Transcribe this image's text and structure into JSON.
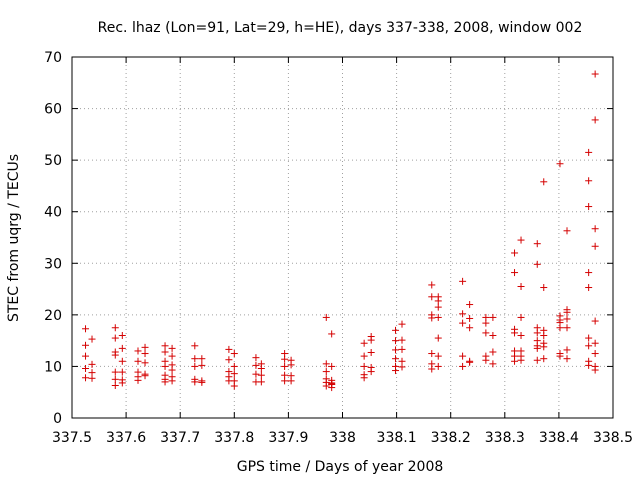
{
  "chart_data": {
    "type": "scatter",
    "title": "Rec. lhaz (Lon=91, Lat=29, h=HE), days 337-338, 2008, window 002",
    "xlabel": "GPS time / Days of year 2008",
    "ylabel": "STEC from uqrg / TECUs",
    "xlim": [
      337.5,
      338.5
    ],
    "ylim": [
      0,
      70
    ],
    "xticks": [
      "337.5",
      "337.6",
      "337.7",
      "337.8",
      "337.9",
      "338",
      "338.1",
      "338.2",
      "338.3",
      "338.4",
      "338.5"
    ],
    "yticks": [
      "0",
      "10",
      "20",
      "30",
      "40",
      "50",
      "60",
      "70"
    ],
    "grid": true,
    "marker": "+",
    "colors": {
      "points": "#d40000",
      "axes": "#000000",
      "grid": "#a0a0a0"
    },
    "points": [
      [
        337.525,
        17.3
      ],
      [
        337.525,
        14.1
      ],
      [
        337.525,
        12.0
      ],
      [
        337.525,
        9.6
      ],
      [
        337.525,
        7.8
      ],
      [
        337.537,
        15.3
      ],
      [
        337.537,
        10.4
      ],
      [
        337.537,
        8.8
      ],
      [
        337.537,
        7.7
      ],
      [
        337.58,
        17.5
      ],
      [
        337.58,
        15.5
      ],
      [
        337.58,
        12.8
      ],
      [
        337.58,
        12.2
      ],
      [
        337.58,
        8.9
      ],
      [
        337.58,
        7.5
      ],
      [
        337.58,
        6.3
      ],
      [
        337.593,
        16.0
      ],
      [
        337.593,
        13.5
      ],
      [
        337.593,
        11.0
      ],
      [
        337.593,
        8.9
      ],
      [
        337.593,
        7.4
      ],
      [
        337.593,
        6.8
      ],
      [
        337.622,
        13.0
      ],
      [
        337.622,
        11.0
      ],
      [
        337.622,
        8.9
      ],
      [
        337.622,
        8.0
      ],
      [
        337.622,
        7.3
      ],
      [
        337.635,
        13.7
      ],
      [
        337.635,
        12.5
      ],
      [
        337.635,
        10.7
      ],
      [
        337.635,
        8.5
      ],
      [
        337.635,
        8.2
      ],
      [
        337.672,
        14.0
      ],
      [
        337.672,
        12.8
      ],
      [
        337.672,
        11.0
      ],
      [
        337.672,
        10.0
      ],
      [
        337.672,
        8.3
      ],
      [
        337.672,
        7.5
      ],
      [
        337.672,
        7.0
      ],
      [
        337.685,
        13.5
      ],
      [
        337.685,
        12.0
      ],
      [
        337.685,
        10.3
      ],
      [
        337.685,
        9.3
      ],
      [
        337.685,
        8.0
      ],
      [
        337.685,
        7.2
      ],
      [
        337.727,
        14.0
      ],
      [
        337.727,
        11.5
      ],
      [
        337.727,
        10.0
      ],
      [
        337.727,
        7.5
      ],
      [
        337.727,
        7.0
      ],
      [
        337.74,
        11.5
      ],
      [
        337.74,
        10.2
      ],
      [
        337.74,
        7.2
      ],
      [
        337.74,
        6.9
      ],
      [
        337.79,
        13.3
      ],
      [
        337.79,
        11.3
      ],
      [
        337.79,
        9.0
      ],
      [
        337.79,
        8.0
      ],
      [
        337.79,
        7.2
      ],
      [
        337.8,
        12.5
      ],
      [
        337.8,
        10.0
      ],
      [
        337.8,
        8.6
      ],
      [
        337.8,
        7.2
      ],
      [
        337.8,
        6.2
      ],
      [
        337.84,
        11.7
      ],
      [
        337.84,
        10.2
      ],
      [
        337.84,
        8.5
      ],
      [
        337.84,
        7.0
      ],
      [
        337.85,
        10.5
      ],
      [
        337.85,
        9.6
      ],
      [
        337.85,
        8.3
      ],
      [
        337.85,
        7.0
      ],
      [
        337.893,
        12.5
      ],
      [
        337.893,
        11.4
      ],
      [
        337.893,
        10.0
      ],
      [
        337.893,
        8.3
      ],
      [
        337.893,
        7.2
      ],
      [
        337.905,
        11.2
      ],
      [
        337.905,
        10.3
      ],
      [
        337.905,
        8.2
      ],
      [
        337.905,
        7.2
      ],
      [
        337.97,
        19.5
      ],
      [
        337.97,
        10.5
      ],
      [
        337.97,
        9.0
      ],
      [
        337.97,
        7.6
      ],
      [
        337.97,
        6.9
      ],
      [
        337.97,
        6.2
      ],
      [
        337.98,
        16.3
      ],
      [
        337.98,
        10.0
      ],
      [
        337.98,
        7.3
      ],
      [
        337.98,
        6.8
      ],
      [
        337.98,
        6.6
      ],
      [
        337.98,
        6.5
      ],
      [
        337.98,
        5.9
      ],
      [
        338.04,
        14.5
      ],
      [
        338.04,
        12.0
      ],
      [
        338.04,
        10.0
      ],
      [
        338.04,
        8.4
      ],
      [
        338.04,
        7.8
      ],
      [
        338.053,
        15.8
      ],
      [
        338.053,
        15.1
      ],
      [
        338.053,
        12.7
      ],
      [
        338.053,
        9.8
      ],
      [
        338.053,
        9.0
      ],
      [
        338.098,
        17.0
      ],
      [
        338.098,
        15.0
      ],
      [
        338.098,
        13.2
      ],
      [
        338.098,
        11.5
      ],
      [
        338.098,
        10.0
      ],
      [
        338.098,
        9.2
      ],
      [
        338.11,
        18.2
      ],
      [
        338.11,
        15.1
      ],
      [
        338.11,
        13.3
      ],
      [
        338.11,
        11.0
      ],
      [
        338.11,
        9.9
      ],
      [
        338.165,
        25.8
      ],
      [
        338.165,
        23.5
      ],
      [
        338.165,
        20.0
      ],
      [
        338.165,
        19.4
      ],
      [
        338.165,
        12.5
      ],
      [
        338.165,
        10.5
      ],
      [
        338.165,
        9.5
      ],
      [
        338.177,
        23.5
      ],
      [
        338.177,
        22.7
      ],
      [
        338.177,
        21.5
      ],
      [
        338.177,
        19.5
      ],
      [
        338.177,
        15.5
      ],
      [
        338.177,
        12.0
      ],
      [
        338.177,
        10.0
      ],
      [
        338.222,
        26.5
      ],
      [
        338.222,
        20.2
      ],
      [
        338.222,
        18.4
      ],
      [
        338.222,
        12.0
      ],
      [
        338.222,
        10.0
      ],
      [
        338.235,
        22.0
      ],
      [
        338.235,
        19.3
      ],
      [
        338.235,
        17.5
      ],
      [
        338.235,
        11.0
      ],
      [
        338.235,
        10.8
      ],
      [
        338.265,
        19.5
      ],
      [
        338.265,
        18.4
      ],
      [
        338.265,
        16.5
      ],
      [
        338.265,
        12.0
      ],
      [
        338.265,
        11.2
      ],
      [
        338.278,
        19.5
      ],
      [
        338.278,
        16.0
      ],
      [
        338.278,
        12.8
      ],
      [
        338.278,
        10.5
      ],
      [
        338.318,
        32.0
      ],
      [
        338.318,
        28.2
      ],
      [
        338.318,
        17.2
      ],
      [
        338.318,
        16.5
      ],
      [
        338.318,
        13.0
      ],
      [
        338.318,
        12.0
      ],
      [
        338.318,
        11.0
      ],
      [
        338.33,
        34.5
      ],
      [
        338.33,
        25.5
      ],
      [
        338.33,
        19.5
      ],
      [
        338.33,
        16.0
      ],
      [
        338.33,
        13.0
      ],
      [
        338.33,
        12.0
      ],
      [
        338.33,
        11.2
      ],
      [
        338.36,
        33.8
      ],
      [
        338.36,
        29.8
      ],
      [
        338.36,
        17.5
      ],
      [
        338.36,
        16.5
      ],
      [
        338.36,
        15.0
      ],
      [
        338.36,
        14.0
      ],
      [
        338.36,
        13.5
      ],
      [
        338.36,
        11.2
      ],
      [
        338.372,
        45.8
      ],
      [
        338.372,
        25.3
      ],
      [
        338.372,
        17.0
      ],
      [
        338.372,
        16.0
      ],
      [
        338.372,
        14.5
      ],
      [
        338.372,
        13.8
      ],
      [
        338.372,
        11.5
      ],
      [
        338.402,
        49.3
      ],
      [
        338.402,
        19.8
      ],
      [
        338.402,
        19.0
      ],
      [
        338.402,
        18.5
      ],
      [
        338.402,
        17.5
      ],
      [
        338.402,
        12.5
      ],
      [
        338.402,
        12.0
      ],
      [
        338.415,
        36.3
      ],
      [
        338.415,
        21.0
      ],
      [
        338.415,
        20.5
      ],
      [
        338.415,
        19.2
      ],
      [
        338.415,
        17.5
      ],
      [
        338.415,
        13.2
      ],
      [
        338.415,
        11.5
      ],
      [
        338.455,
        51.5
      ],
      [
        338.455,
        46.0
      ],
      [
        338.455,
        41.0
      ],
      [
        338.455,
        28.2
      ],
      [
        338.455,
        25.3
      ],
      [
        338.455,
        15.5
      ],
      [
        338.455,
        14.0
      ],
      [
        338.455,
        11.0
      ],
      [
        338.455,
        10.2
      ],
      [
        338.467,
        66.7
      ],
      [
        338.467,
        57.8
      ],
      [
        338.467,
        36.7
      ],
      [
        338.467,
        33.3
      ],
      [
        338.467,
        18.8
      ],
      [
        338.467,
        14.5
      ],
      [
        338.467,
        12.5
      ],
      [
        338.467,
        10.0
      ],
      [
        338.467,
        9.3
      ]
    ]
  }
}
